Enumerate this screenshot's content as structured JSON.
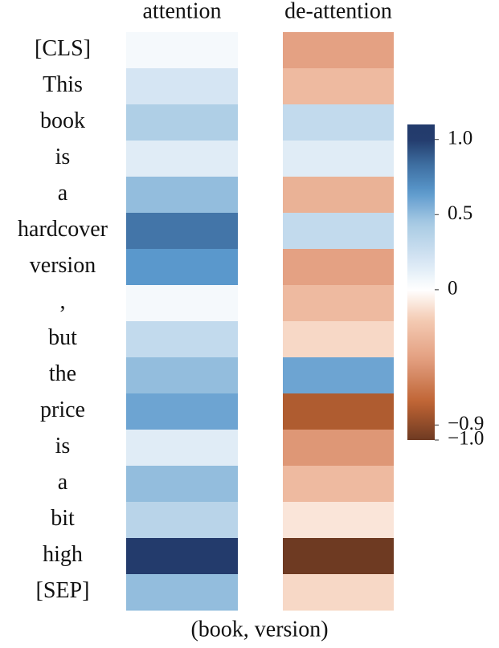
{
  "chart_data": {
    "type": "heatmap",
    "categories": [
      "[CLS]",
      "This",
      "book",
      "is",
      "a",
      "hardcover",
      "version",
      ",",
      "but",
      "the",
      "price",
      "is",
      "a",
      "bit",
      "high",
      "[SEP]"
    ],
    "series": [
      {
        "name": "attention",
        "values": [
          0.05,
          0.2,
          0.4,
          0.15,
          0.5,
          0.8,
          0.65,
          0.05,
          0.3,
          0.5,
          0.6,
          0.15,
          0.5,
          0.35,
          1.0,
          0.5
        ]
      },
      {
        "name": "de-attention",
        "values": [
          -0.45,
          -0.3,
          0.3,
          0.15,
          -0.35,
          0.3,
          -0.45,
          -0.3,
          -0.15,
          0.6,
          -0.8,
          -0.5,
          -0.3,
          -0.1,
          -1.0,
          -0.15
        ]
      }
    ],
    "xlabel": "(book, version)",
    "colorscale": [
      [
        -1,
        "#6e3a22"
      ],
      [
        -0.75,
        "#bf6434"
      ],
      [
        -0.45,
        "#e4a183"
      ],
      [
        -0.2,
        "#f4cbb3"
      ],
      [
        0,
        "#ffffff"
      ],
      [
        0.2,
        "#d5e5f3"
      ],
      [
        0.45,
        "#a6c9e3"
      ],
      [
        0.65,
        "#5a98cc"
      ],
      [
        0.85,
        "#3b6a9c"
      ],
      [
        1,
        "#233b6c"
      ]
    ],
    "ylim": [
      -1.0,
      1.1
    ],
    "yticks": [
      {
        "value": 1,
        "label": "1.0"
      },
      0.5,
      0,
      {
        "value": -0.9,
        "label": "−0.9"
      },
      {
        "value": -1,
        "label": "−1.0"
      }
    ]
  }
}
